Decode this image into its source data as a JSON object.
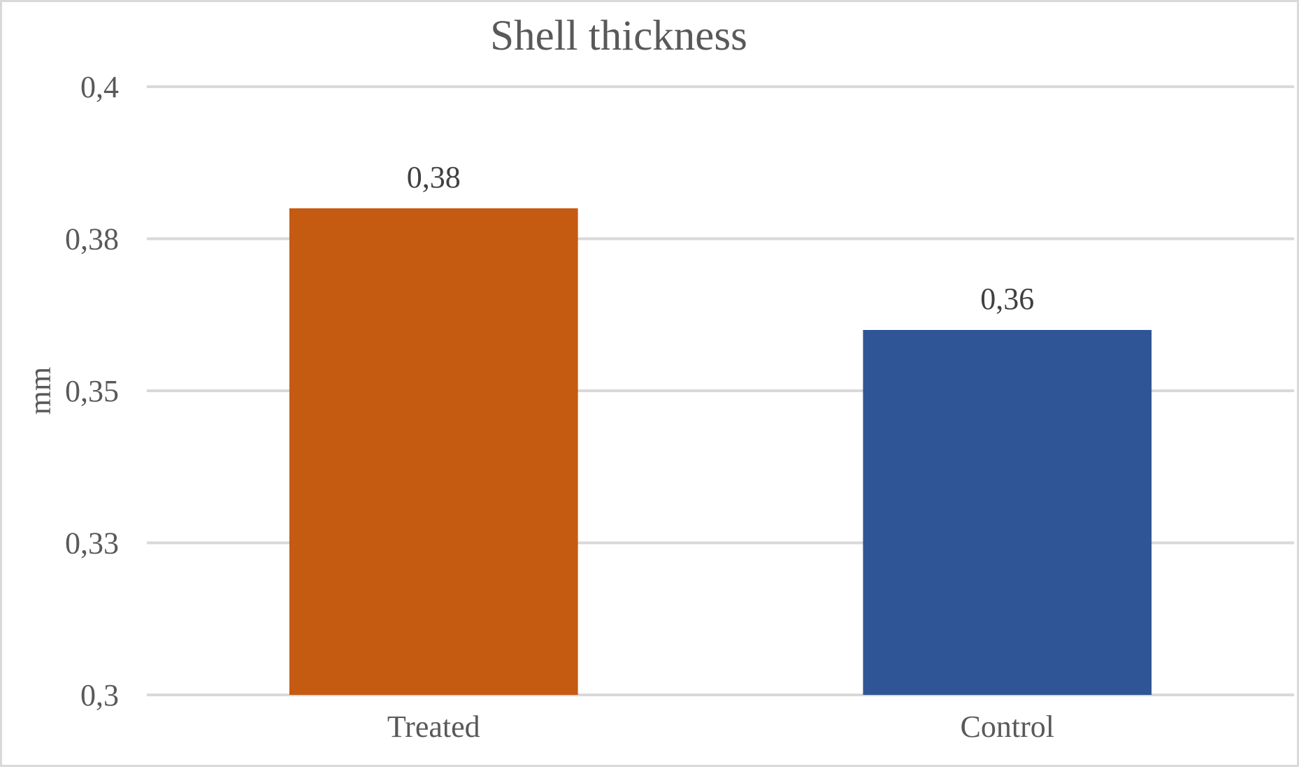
{
  "chart_data": {
    "type": "bar",
    "title": "Shell thickness",
    "xlabel": "",
    "ylabel": "mm",
    "ylim": [
      0.3,
      0.4
    ],
    "yticks": [
      0.3,
      0.325,
      0.35,
      0.375,
      0.4
    ],
    "ytick_labels": [
      "0,3",
      "0,33",
      "0,35",
      "0,38",
      "0,4"
    ],
    "categories": [
      "Treated",
      "Control"
    ],
    "values": [
      0.38,
      0.36
    ],
    "data_labels": [
      "0,38",
      "0,36"
    ],
    "bar_colors": [
      "#c55a11",
      "#2f5597"
    ],
    "gridlines": true,
    "gridline_color": "#d9d9d9",
    "legend": "none"
  }
}
